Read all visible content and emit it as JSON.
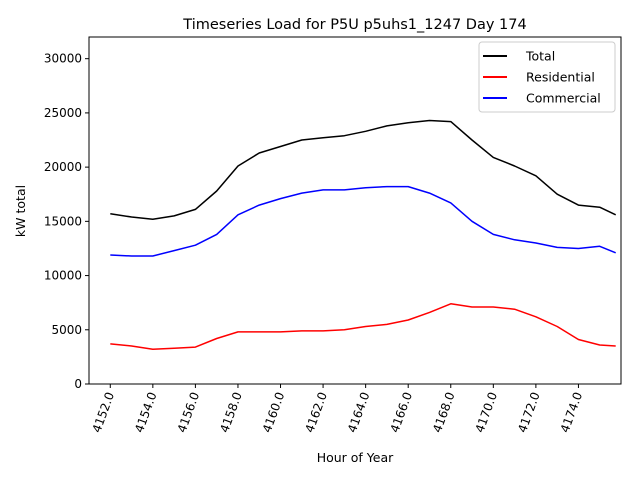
{
  "chart_data": {
    "type": "line",
    "title": "Timeseries Load for P5U p5uhs1_1247  Day 174",
    "xlabel": "Hour of Year",
    "ylabel": "kW total",
    "xlim": [
      4151.0,
      4176.0
    ],
    "ylim": [
      0,
      32000
    ],
    "xticks": [
      4152,
      4154,
      4156,
      4158,
      4160,
      4162,
      4164,
      4166,
      4168,
      4170,
      4172,
      4174
    ],
    "xtick_labels": [
      "4152.0",
      "4154.0",
      "4156.0",
      "4158.0",
      "4160.0",
      "4162.0",
      "4164.0",
      "4166.0",
      "4168.0",
      "4170.0",
      "4172.0",
      "4174.0"
    ],
    "yticks": [
      0,
      5000,
      10000,
      15000,
      20000,
      25000,
      30000
    ],
    "ytick_labels": [
      "0",
      "5000",
      "10000",
      "15000",
      "20000",
      "25000",
      "30000"
    ],
    "grid": false,
    "legend_position": "top-right",
    "x": [
      4152,
      4153,
      4154,
      4155,
      4156,
      4157,
      4158,
      4159,
      4160,
      4161,
      4162,
      4163,
      4164,
      4165,
      4166,
      4167,
      4168,
      4169,
      4170,
      4171,
      4172,
      4173,
      4174,
      4175,
      4175.75
    ],
    "series": [
      {
        "name": "Total",
        "color": "#000000",
        "values": [
          15700,
          15400,
          15200,
          15500,
          16100,
          17800,
          20100,
          21300,
          21900,
          22500,
          22700,
          22900,
          23300,
          23800,
          24100,
          24300,
          24200,
          22500,
          20900,
          20100,
          19200,
          17500,
          16500,
          16300,
          15600
        ]
      },
      {
        "name": "Residential",
        "color": "#ff0000",
        "values": [
          3700,
          3500,
          3200,
          3300,
          3400,
          4200,
          4800,
          4800,
          4800,
          4900,
          4900,
          5000,
          5300,
          5500,
          5900,
          6600,
          7400,
          7100,
          7100,
          6900,
          6200,
          5300,
          4100,
          3600,
          3500
        ]
      },
      {
        "name": "Commercial",
        "color": "#0000ff",
        "values": [
          11900,
          11800,
          11800,
          12300,
          12800,
          13800,
          15600,
          16500,
          17100,
          17600,
          17900,
          17900,
          18100,
          18200,
          18200,
          17600,
          16700,
          15000,
          13800,
          13300,
          13000,
          12600,
          12500,
          12700,
          12100
        ]
      }
    ]
  }
}
